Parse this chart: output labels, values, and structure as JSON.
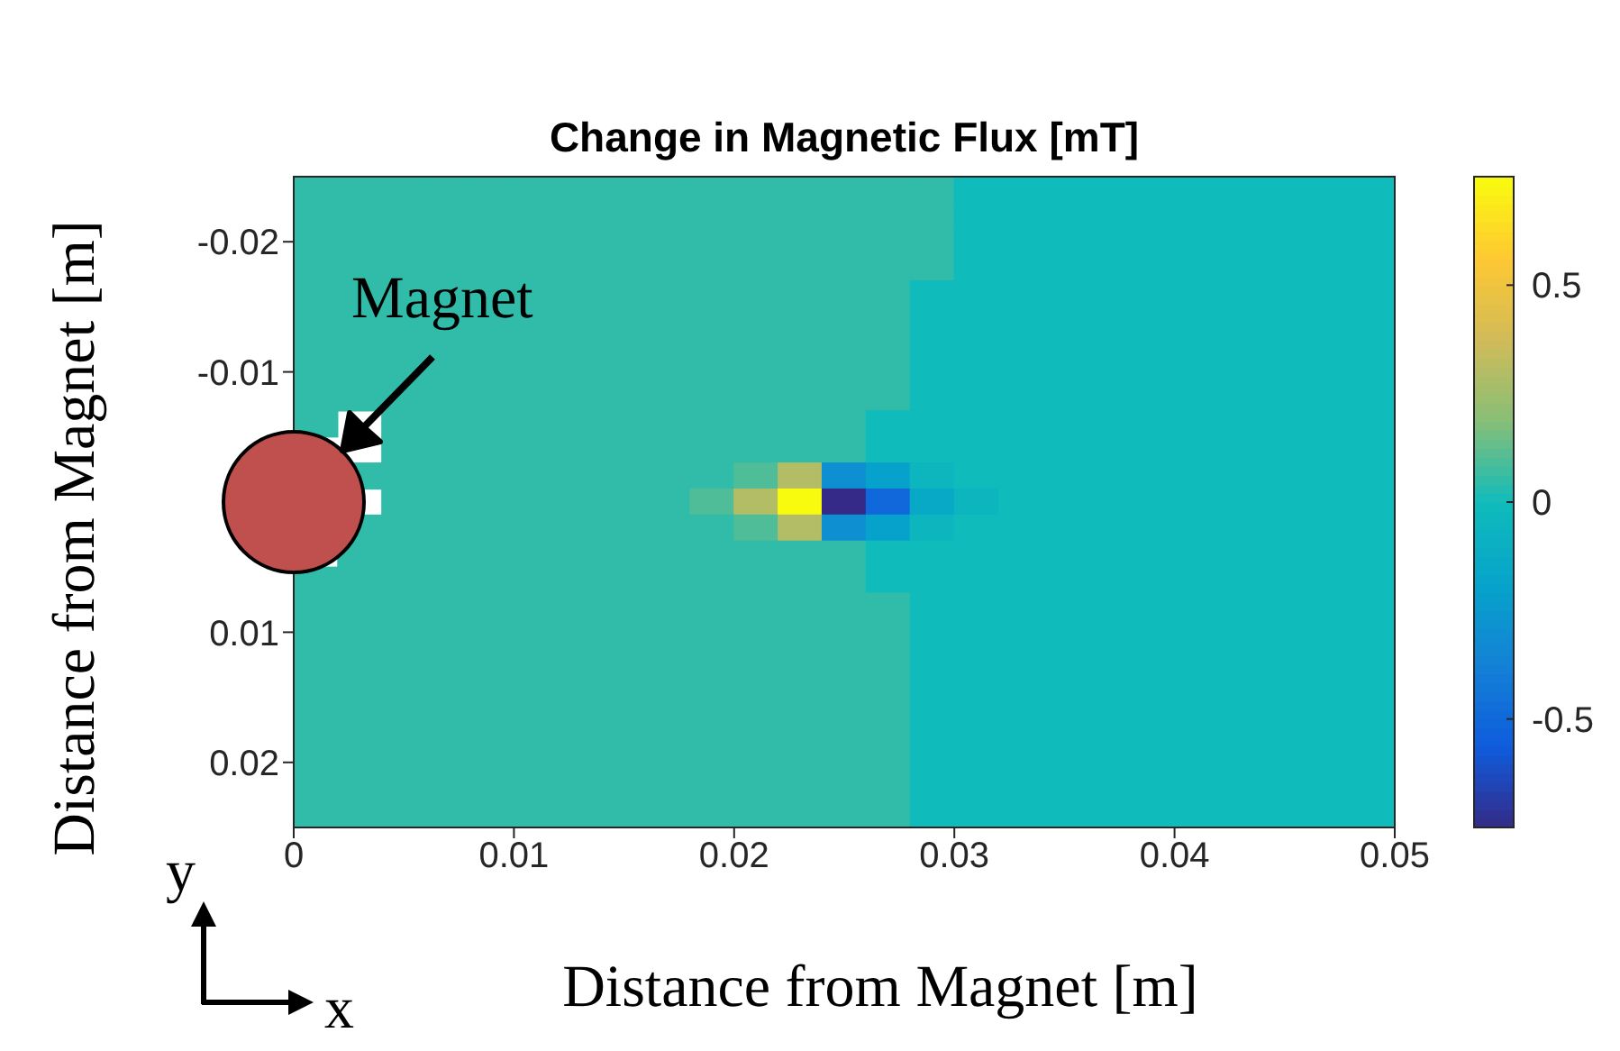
{
  "chart_data": {
    "type": "heatmap",
    "title": "Change in Magnetic Flux [mT]",
    "xlabel": "Distance from Magnet [m]",
    "ylabel": "Distance from Magnet [m]",
    "annotations": [
      "Magnet",
      "y",
      "x"
    ],
    "x": [
      0.001,
      0.003,
      0.005,
      0.007,
      0.009,
      0.011,
      0.013,
      0.015,
      0.017,
      0.019,
      0.021,
      0.023,
      0.025,
      0.027,
      0.029,
      0.031,
      0.033,
      0.035,
      0.037,
      0.039,
      0.041,
      0.043,
      0.045,
      0.047,
      0.049
    ],
    "y": [
      -0.024,
      -0.022,
      -0.02,
      -0.018,
      -0.016,
      -0.014,
      -0.012,
      -0.01,
      -0.008,
      -0.006,
      -0.004,
      -0.002,
      0,
      0.002,
      0.004,
      0.006,
      0.008,
      0.01,
      0.012,
      0.014,
      0.016,
      0.018,
      0.02,
      0.022,
      0.024
    ],
    "xlim": [
      0,
      0.05
    ],
    "xticks": [
      0,
      0.01,
      0.02,
      0.03,
      0.04,
      0.05
    ],
    "ylim": [
      0.025,
      -0.025
    ],
    "yticks": [
      -0.02,
      -0.01,
      {
        "value": 0,
        "label": null
      },
      0.01,
      0.02
    ],
    "clim": [
      -0.75,
      0.75
    ],
    "cticks": [
      -0.5,
      0,
      0.5
    ],
    "cells": [
      [
        0.05,
        0.05,
        0.05,
        0.05,
        0.05,
        0.05,
        0.05,
        0.05,
        0.05,
        0.05,
        0.05,
        0.05,
        0.05,
        0.05,
        0.05,
        0,
        0,
        0,
        0,
        0,
        0,
        0,
        0,
        0,
        0
      ],
      [
        0.05,
        0.05,
        0.05,
        0.05,
        0.05,
        0.05,
        0.05,
        0.05,
        0.05,
        0.05,
        0.05,
        0.05,
        0.05,
        0.05,
        0.05,
        0,
        0,
        0,
        0,
        0,
        0,
        0,
        0,
        0,
        0
      ],
      [
        0.05,
        0.05,
        0.05,
        0.05,
        0.05,
        0.05,
        0.05,
        0.05,
        0.05,
        0.05,
        0.05,
        0.05,
        0.05,
        0.05,
        0.05,
        0,
        0,
        0,
        0,
        0,
        0,
        0,
        0,
        0,
        0
      ],
      [
        0.05,
        0.05,
        0.05,
        0.05,
        0.05,
        0.05,
        0.05,
        0.05,
        0.05,
        0.05,
        0.05,
        0.05,
        0.05,
        0.05,
        0.05,
        0,
        0,
        0,
        0,
        0,
        0,
        0,
        0,
        0,
        0
      ],
      [
        0.05,
        0.05,
        0.05,
        0.05,
        0.05,
        0.05,
        0.05,
        0.05,
        0.05,
        0.05,
        0.05,
        0.05,
        0.05,
        0.05,
        0,
        0,
        0,
        0,
        0,
        0,
        0,
        0,
        0,
        0,
        0
      ],
      [
        0.05,
        0.05,
        0.05,
        0.05,
        0.05,
        0.05,
        0.05,
        0.05,
        0.05,
        0.05,
        0.05,
        0.05,
        0.05,
        0.05,
        0,
        0,
        0,
        0,
        0,
        0,
        0,
        0,
        0,
        0,
        0
      ],
      [
        0.05,
        0.05,
        0.05,
        0.05,
        0.05,
        0.05,
        0.05,
        0.05,
        0.05,
        0.05,
        0.05,
        0.05,
        0.05,
        0.05,
        0,
        0,
        0,
        0,
        0,
        0,
        0,
        0,
        0,
        0,
        0
      ],
      [
        0.05,
        0.05,
        0.05,
        0.05,
        0.05,
        0.05,
        0.05,
        0.05,
        0.05,
        0.05,
        0.05,
        0.05,
        0.05,
        0.05,
        0,
        0,
        0,
        0,
        0,
        0,
        0,
        0,
        0,
        0,
        0
      ],
      [
        0.05,
        0.05,
        0.05,
        0.05,
        0.05,
        0.05,
        0.05,
        0.05,
        0.05,
        0.05,
        0.05,
        0.05,
        0.05,
        0.05,
        0,
        0,
        0,
        0,
        0,
        0,
        0,
        0,
        0,
        0,
        0
      ],
      [
        0.05,
        null,
        0.05,
        0.05,
        0.05,
        0.05,
        0.05,
        0.05,
        0.05,
        0.05,
        0.05,
        0.05,
        0.05,
        0,
        0,
        0,
        0,
        0,
        0,
        0,
        0,
        0,
        0,
        0,
        0
      ],
      [
        null,
        null,
        0.05,
        0.05,
        0.05,
        0.05,
        0.05,
        0.05,
        0.05,
        0.05,
        0.05,
        0.05,
        0.05,
        0,
        0,
        0,
        0,
        0,
        0,
        0,
        0,
        0,
        0,
        0,
        0
      ],
      [
        null,
        0.05,
        0.05,
        0.05,
        0.05,
        0.05,
        0.05,
        0.05,
        0.05,
        0.05,
        0.1,
        0.3,
        -0.3,
        -0.2,
        -0.05,
        0,
        0,
        0,
        0,
        0,
        0,
        0,
        0,
        0,
        0
      ],
      [
        null,
        null,
        0.05,
        0.05,
        0.05,
        0.05,
        0.05,
        0.05,
        0.05,
        0.1,
        0.3,
        0.75,
        -0.75,
        -0.5,
        -0.15,
        -0.05,
        0,
        0,
        0,
        0,
        0,
        0,
        0,
        0,
        0
      ],
      [
        null,
        0.05,
        0.05,
        0.05,
        0.05,
        0.05,
        0.05,
        0.05,
        0.05,
        0.05,
        0.1,
        0.3,
        -0.3,
        -0.2,
        -0.05,
        0,
        0,
        0,
        0,
        0,
        0,
        0,
        0,
        0,
        0
      ],
      [
        null,
        0.05,
        0.05,
        0.05,
        0.05,
        0.05,
        0.05,
        0.05,
        0.05,
        0.05,
        0.05,
        0.05,
        0.05,
        0,
        0,
        0,
        0,
        0,
        0,
        0,
        0,
        0,
        0,
        0,
        0
      ],
      [
        0.05,
        0.05,
        0.05,
        0.05,
        0.05,
        0.05,
        0.05,
        0.05,
        0.05,
        0.05,
        0.05,
        0.05,
        0.05,
        0,
        0,
        0,
        0,
        0,
        0,
        0,
        0,
        0,
        0,
        0,
        0
      ],
      [
        0.05,
        0.05,
        0.05,
        0.05,
        0.05,
        0.05,
        0.05,
        0.05,
        0.05,
        0.05,
        0.05,
        0.05,
        0.05,
        0.05,
        0,
        0,
        0,
        0,
        0,
        0,
        0,
        0,
        0,
        0,
        0
      ],
      [
        0.05,
        0.05,
        0.05,
        0.05,
        0.05,
        0.05,
        0.05,
        0.05,
        0.05,
        0.05,
        0.05,
        0.05,
        0.05,
        0.05,
        0,
        0,
        0,
        0,
        0,
        0,
        0,
        0,
        0,
        0,
        0
      ],
      [
        0.05,
        0.05,
        0.05,
        0.05,
        0.05,
        0.05,
        0.05,
        0.05,
        0.05,
        0.05,
        0.05,
        0.05,
        0.05,
        0.05,
        0,
        0,
        0,
        0,
        0,
        0,
        0,
        0,
        0,
        0,
        0
      ],
      [
        0.05,
        0.05,
        0.05,
        0.05,
        0.05,
        0.05,
        0.05,
        0.05,
        0.05,
        0.05,
        0.05,
        0.05,
        0.05,
        0.05,
        0,
        0,
        0,
        0,
        0,
        0,
        0,
        0,
        0,
        0,
        0
      ],
      [
        0.05,
        0.05,
        0.05,
        0.05,
        0.05,
        0.05,
        0.05,
        0.05,
        0.05,
        0.05,
        0.05,
        0.05,
        0.05,
        0.05,
        0,
        0,
        0,
        0,
        0,
        0,
        0,
        0,
        0,
        0,
        0
      ],
      [
        0.05,
        0.05,
        0.05,
        0.05,
        0.05,
        0.05,
        0.05,
        0.05,
        0.05,
        0.05,
        0.05,
        0.05,
        0.05,
        0.05,
        0,
        0,
        0,
        0,
        0,
        0,
        0,
        0,
        0,
        0,
        0
      ],
      [
        0.05,
        0.05,
        0.05,
        0.05,
        0.05,
        0.05,
        0.05,
        0.05,
        0.05,
        0.05,
        0.05,
        0.05,
        0.05,
        0.05,
        0,
        0,
        0,
        0,
        0,
        0,
        0,
        0,
        0,
        0,
        0
      ],
      [
        0.05,
        0.05,
        0.05,
        0.05,
        0.05,
        0.05,
        0.05,
        0.05,
        0.05,
        0.05,
        0.05,
        0.05,
        0.05,
        0.05,
        0,
        0,
        0,
        0,
        0,
        0,
        0,
        0,
        0,
        0,
        0
      ],
      [
        0.05,
        0.05,
        0.05,
        0.05,
        0.05,
        0.05,
        0.05,
        0.05,
        0.05,
        0.05,
        0.05,
        0.05,
        0.05,
        0.05,
        0,
        0,
        0,
        0,
        0,
        0,
        0,
        0,
        0,
        0,
        0
      ]
    ]
  }
}
